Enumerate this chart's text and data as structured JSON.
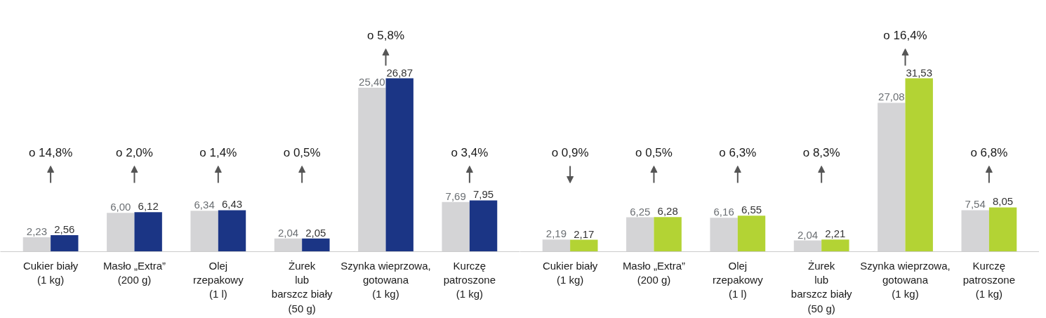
{
  "chart_data": [
    {
      "type": "bar",
      "categories": [
        "Cukier biały\n(1 kg)",
        "Masło „Extra”\n(200 g)",
        "Olej\nrzepakowy\n(1 l)",
        "Żurek\nlub\nbarszcz biały\n(50 g)",
        "Szynka wieprzowa,\ngotowana\n(1 kg)",
        "Kurczę\npatroszone\n(1 kg)"
      ],
      "series": [
        {
          "color": "#d4d4d6",
          "values": [
            2.23,
            6.0,
            6.34,
            2.04,
            25.4,
            7.69
          ],
          "value_labels": [
            "2,23",
            "6,00",
            "6,34",
            "2,04",
            "25,40",
            "7,69"
          ]
        },
        {
          "color": "#1b3585",
          "values": [
            2.56,
            6.12,
            6.43,
            2.05,
            26.87,
            7.95
          ],
          "value_labels": [
            "2,56",
            "6,12",
            "6,43",
            "2,05",
            "26,87",
            "7,95"
          ]
        }
      ],
      "annotations": [
        "o 14,8%",
        "o 2,0%",
        "o 1,4%",
        "o 0,5%",
        "o 5,8%",
        "o 3,4%"
      ],
      "grid": false
    },
    {
      "type": "bar",
      "categories": [
        "Cukier biały\n(1 kg)",
        "Masło „Extra”\n(200 g)",
        "Olej\nrzepakowy\n(1 l)",
        "Żurek\nlub\nbarszcz biały\n(50 g)",
        "Szynka wieprzowa,\ngotowana\n(1 kg)",
        "Kurczę\npatroszone\n(1 kg)"
      ],
      "series": [
        {
          "color": "#d4d4d6",
          "values": [
            2.19,
            6.25,
            6.16,
            2.04,
            27.08,
            7.54
          ],
          "value_labels": [
            "2,19",
            "6,25",
            "6,16",
            "2,04",
            "27,08",
            "7,54"
          ]
        },
        {
          "color": "#b3d334",
          "values": [
            2.17,
            6.28,
            6.55,
            2.21,
            31.53,
            8.05
          ],
          "value_labels": [
            "2,17",
            "6,28",
            "6,55",
            "2,21",
            "31,53",
            "8,05"
          ]
        }
      ],
      "annotations": [
        "o 0,9%",
        "o 0,5%",
        "o 6,3%",
        "o 8,3%",
        "o 16,4%",
        "o 6,8%"
      ],
      "grid": false
    }
  ]
}
